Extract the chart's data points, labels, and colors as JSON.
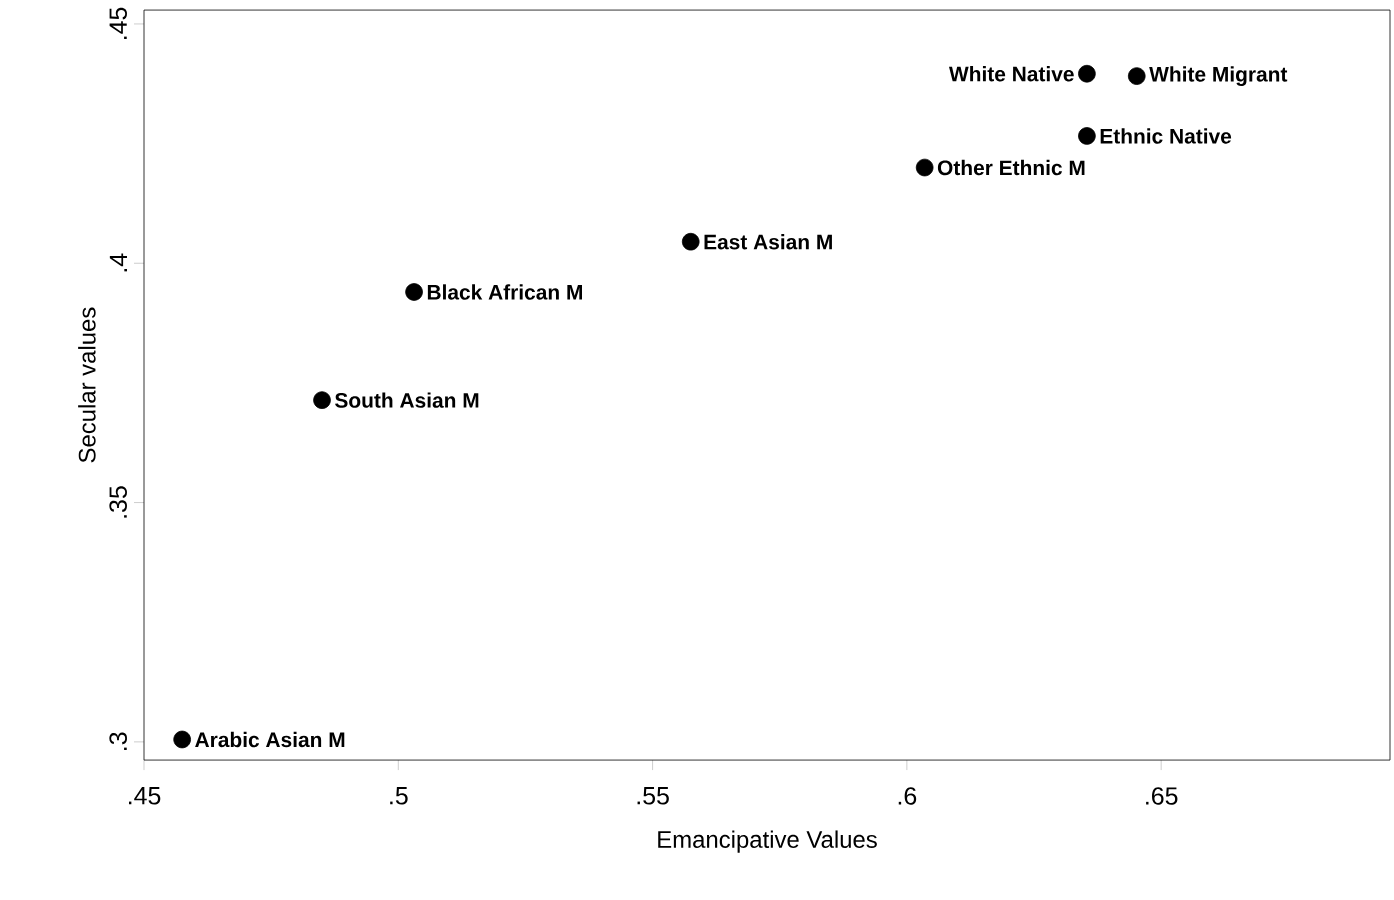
{
  "chart_data": {
    "type": "scatter",
    "xlabel": "Emancipative Values",
    "ylabel": "Secular values",
    "x": [
      0.4575,
      0.485,
      0.5031,
      0.5575,
      0.6035,
      0.6354,
      0.6452,
      0.6354
    ],
    "values": [
      0.3005,
      0.3714,
      0.394,
      0.4045,
      0.42,
      0.4396,
      0.4391,
      0.4266
    ],
    "value_labels": [
      "Arabic Asian M",
      "South Asian M",
      "Black African M",
      "East Asian M",
      "Other Ethnic M",
      "White Native",
      "White Migrant",
      "Ethnic Native"
    ],
    "color": "#000000",
    "marker": "circle",
    "grid": false,
    "xlim": [
      0.45,
      0.695
    ],
    "ylim": [
      0.2962,
      0.4529
    ],
    "xticks": [
      {
        "value": 0.45,
        "label": ".45"
      },
      {
        "value": 0.5,
        "label": ".5"
      },
      {
        "value": 0.55,
        "label": ".55"
      },
      {
        "value": 0.6,
        "label": ".6"
      },
      {
        "value": 0.65,
        "label": ".65"
      }
    ],
    "yticks": [
      {
        "value": 0.3,
        "label": ".3"
      },
      {
        "value": 0.35,
        "label": ".35"
      },
      {
        "value": 0.4,
        "label": ".4"
      },
      {
        "value": 0.45,
        "label": ".45"
      }
    ]
  }
}
